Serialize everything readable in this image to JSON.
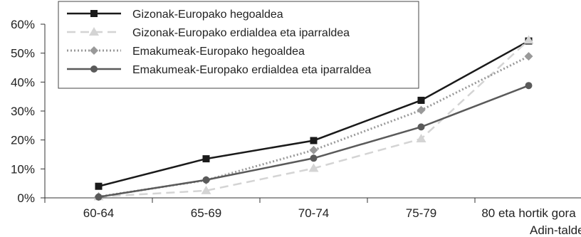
{
  "chart_data": {
    "type": "line",
    "categories": [
      "60-64",
      "65-69",
      "70-74",
      "75-79",
      "80 eta hortik gora"
    ],
    "xlabel": "Adin-taldea",
    "ylabel": "",
    "ylim": [
      0,
      60
    ],
    "yticks": [
      "0%",
      "10%",
      "20%",
      "30%",
      "40%",
      "50%",
      "60%"
    ],
    "grid": false,
    "legend_position": "top-left",
    "series": [
      {
        "name": "Gizonak-Europako hegoaldea",
        "values": [
          4,
          13.5,
          19.8,
          33.7,
          54.2
        ],
        "color": "#1a1a1a",
        "dash": "solid",
        "marker": "square"
      },
      {
        "name": "Gizonak-Europako erdialdea eta iparraldea",
        "values": [
          0.4,
          2.5,
          10.2,
          20.4,
          54.5
        ],
        "color": "#d4d4d4",
        "dash": "dashed",
        "marker": "triangle"
      },
      {
        "name": "Emakumeak-Europako hegoaldea",
        "values": [
          0.4,
          6.1,
          16.5,
          30.3,
          48.9
        ],
        "color": "#999999",
        "dash": "dotted",
        "marker": "diamond"
      },
      {
        "name": "Emakumeak-Europako erdialdea eta iparraldea",
        "values": [
          0.3,
          6.2,
          13.7,
          24.5,
          38.8
        ],
        "color": "#5a5a5a",
        "dash": "solid",
        "marker": "circle"
      }
    ]
  }
}
